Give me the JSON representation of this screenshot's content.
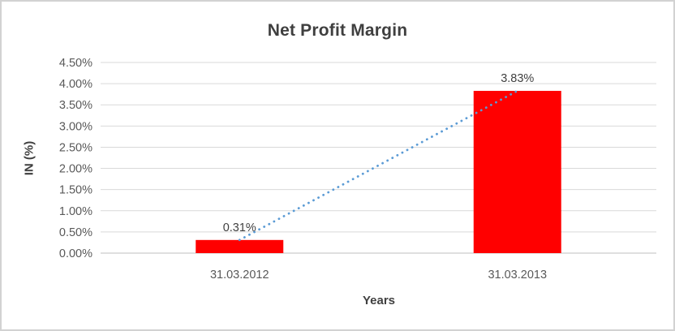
{
  "window": {
    "background": "#ffffff",
    "border_color": "#d2d2d2"
  },
  "chart_data": {
    "type": "bar",
    "title": "Net Profit Margin",
    "xlabel": "Years",
    "ylabel": "IN (%)",
    "categories": [
      "31.03.2012",
      "31.03.2013"
    ],
    "values": [
      0.31,
      3.83
    ],
    "data_labels": [
      "0.31%",
      "3.83%"
    ],
    "y_ticks": [
      "0.00%",
      "0.50%",
      "1.00%",
      "1.50%",
      "2.00%",
      "2.50%",
      "3.00%",
      "3.50%",
      "4.00%",
      "4.50%"
    ],
    "y_tick_values": [
      0,
      0.5,
      1,
      1.5,
      2,
      2.5,
      3,
      3.5,
      4,
      4.5
    ],
    "ylim": [
      0,
      4.5
    ],
    "grid": true,
    "legend": "none",
    "bar_color": "#ff0000",
    "trendline": {
      "style": "dotted",
      "color": "#5b9bd5",
      "from_value": 0.31,
      "to_value": 3.83
    },
    "colors": {
      "title_text": "#3f3f3f",
      "axis_title_text": "#404040",
      "tick_text": "#595959",
      "data_label_text": "#404040",
      "gridline": "#d9d9d9",
      "axis_line": "#bfbfbf"
    }
  }
}
